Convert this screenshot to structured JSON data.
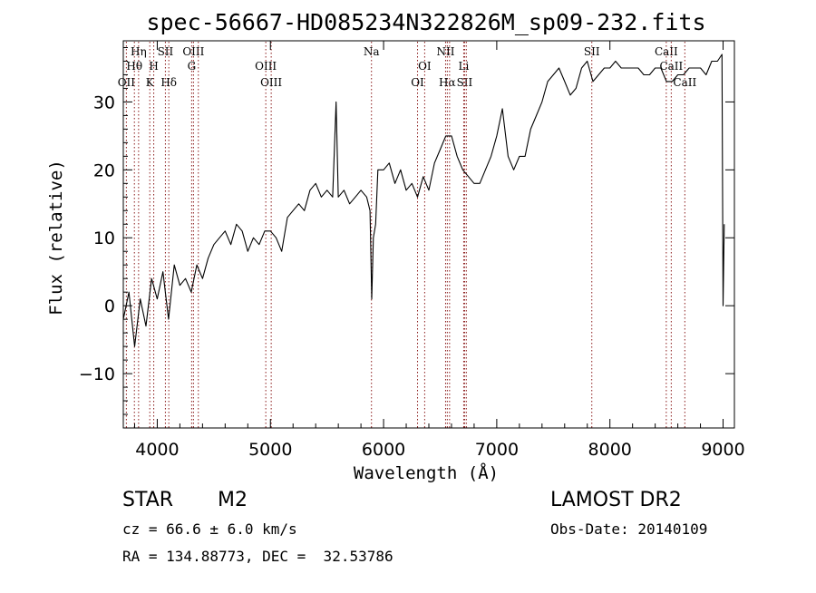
{
  "chart_data": {
    "type": "line",
    "title": "spec-56667-HD085234N322826M_sp09-232.fits",
    "xlabel": "Wavelength (Å)",
    "ylabel": "Flux (relative)",
    "xlim": [
      3700,
      9100
    ],
    "ylim": [
      -18,
      39
    ],
    "xticks": [
      4000,
      5000,
      6000,
      7000,
      8000,
      9000
    ],
    "yticks": [
      -10,
      0,
      10,
      20,
      30
    ],
    "grid": false,
    "line_color": "#000000",
    "marker_color": "#8b1a1a",
    "series": [
      {
        "x": [
          3700,
          3750,
          3800,
          3850,
          3900,
          3950,
          4000,
          4050,
          4100,
          4150,
          4200,
          4250,
          4300,
          4350,
          4400,
          4450,
          4500,
          4550,
          4600,
          4650,
          4700,
          4750,
          4800,
          4850,
          4900,
          4950,
          5000,
          5050,
          5100,
          5150,
          5200,
          5250,
          5300,
          5350,
          5400,
          5450,
          5500,
          5550,
          5580,
          5600,
          5650,
          5700,
          5750,
          5800,
          5850,
          5880,
          5895,
          5910,
          5930,
          5950,
          6000,
          6050,
          6100,
          6150,
          6200,
          6250,
          6300,
          6350,
          6400,
          6450,
          6500,
          6550,
          6600,
          6650,
          6700,
          6750,
          6800,
          6850,
          6900,
          6950,
          7000,
          7050,
          7100,
          7150,
          7200,
          7250,
          7300,
          7350,
          7400,
          7450,
          7500,
          7550,
          7600,
          7650,
          7700,
          7750,
          7800,
          7850,
          7900,
          7950,
          8000,
          8050,
          8100,
          8150,
          8200,
          8250,
          8300,
          8350,
          8400,
          8450,
          8500,
          8550,
          8600,
          8650,
          8700,
          8750,
          8800,
          8850,
          8900,
          8950,
          8990,
          9000,
          9010
        ],
        "y": [
          -2,
          2,
          -6,
          1,
          -3,
          4,
          1,
          5,
          -2,
          6,
          3,
          4,
          2,
          6,
          4,
          7,
          9,
          10,
          11,
          9,
          12,
          11,
          8,
          10,
          9,
          11,
          11,
          10,
          8,
          13,
          14,
          15,
          14,
          17,
          18,
          16,
          17,
          16,
          30,
          16,
          17,
          15,
          16,
          17,
          16,
          14,
          1,
          10,
          12,
          20,
          20,
          21,
          18,
          20,
          17,
          18,
          16,
          19,
          17,
          21,
          23,
          25,
          25,
          22,
          20,
          19,
          18,
          18,
          20,
          22,
          25,
          29,
          22,
          20,
          22,
          22,
          26,
          28,
          30,
          33,
          34,
          35,
          33,
          31,
          32,
          35,
          36,
          33,
          34,
          35,
          35,
          36,
          35,
          35,
          35,
          35,
          34,
          34,
          35,
          35,
          33,
          33,
          34,
          34,
          35,
          35,
          35,
          34,
          36,
          36,
          37,
          0,
          12
        ]
      }
    ],
    "line_markers": [
      {
        "x": 3727,
        "label": "OII",
        "row": 3
      },
      {
        "x": 3798,
        "label": "Hθ",
        "row": 2
      },
      {
        "x": 3835,
        "label": "Hη",
        "row": 1
      },
      {
        "x": 3934,
        "label": "K",
        "row": 3
      },
      {
        "x": 3969,
        "label": "H",
        "row": 2
      },
      {
        "x": 4072,
        "label": "SII",
        "row": 1
      },
      {
        "x": 4102,
        "label": "Hδ",
        "row": 3
      },
      {
        "x": 4304,
        "label": "G",
        "row": 2
      },
      {
        "x": 4320,
        "label": "OIII",
        "row": 1
      },
      {
        "x": 4363,
        "label": "",
        "row": 0
      },
      {
        "x": 4959,
        "label": "OIII",
        "row": 2
      },
      {
        "x": 5007,
        "label": "OIII",
        "row": 3
      },
      {
        "x": 5893,
        "label": "Na",
        "row": 1
      },
      {
        "x": 6300,
        "label": "OI",
        "row": 3
      },
      {
        "x": 6363,
        "label": "OI",
        "row": 2
      },
      {
        "x": 6548,
        "label": "NII",
        "row": 1
      },
      {
        "x": 6563,
        "label": "Hα",
        "row": 3
      },
      {
        "x": 6583,
        "label": "",
        "row": 0
      },
      {
        "x": 6708,
        "label": "Li",
        "row": 2
      },
      {
        "x": 6716,
        "label": "SII",
        "row": 3
      },
      {
        "x": 6731,
        "label": "",
        "row": 0
      },
      {
        "x": 7840,
        "label": "SII",
        "row": 1
      },
      {
        "x": 8498,
        "label": "CaII",
        "row": 1
      },
      {
        "x": 8542,
        "label": "CaII",
        "row": 2
      },
      {
        "x": 8662,
        "label": "CaII",
        "row": 3
      }
    ]
  },
  "footer": {
    "object_class": "STAR",
    "subclass": "M2",
    "survey": "LAMOST DR2",
    "redshift": "cz = 66.6 ± 6.0 km/s",
    "obs_date": "Obs-Date: 20140109",
    "coords": "RA = 134.88773, DEC =  32.53786"
  }
}
